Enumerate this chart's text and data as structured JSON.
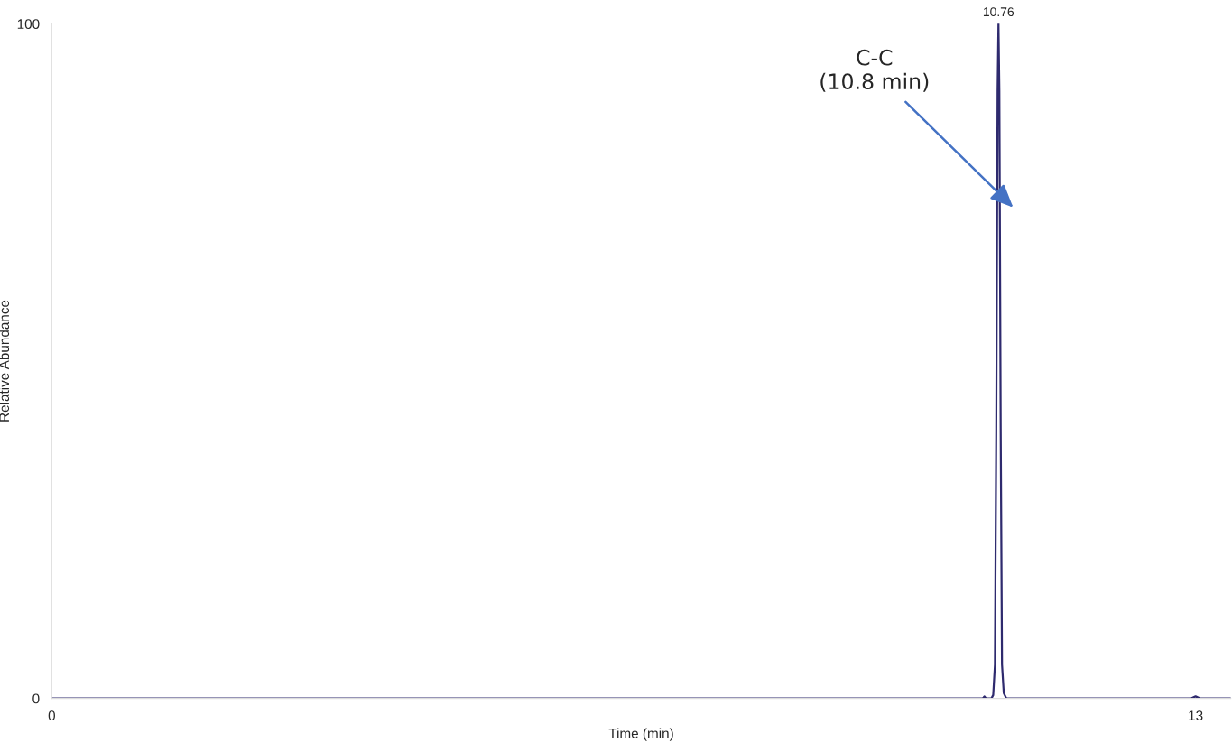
{
  "chart_data": {
    "type": "line",
    "xlabel": "Time (min)",
    "ylabel": "Relative Abundance",
    "x": [
      0,
      2,
      4,
      6,
      8,
      10,
      10.5,
      10.58,
      10.6,
      10.62,
      10.68,
      10.7,
      10.72,
      10.735,
      10.75,
      10.76,
      10.77,
      10.785,
      10.8,
      10.82,
      10.85,
      11.5,
      12.95,
      13.0,
      13.05,
      13.4
    ],
    "series": [
      {
        "color": "#2e2a6e",
        "values": [
          0,
          0,
          0,
          0,
          0,
          0,
          0,
          0,
          0.3,
          0,
          0,
          0.5,
          5,
          40,
          90,
          100,
          90,
          40,
          5,
          0.8,
          0,
          0,
          0,
          0.3,
          0,
          0
        ]
      }
    ],
    "xlim": [
      0,
      13.4
    ],
    "ylim": [
      0,
      100
    ],
    "xticks": [
      0,
      13
    ],
    "yticks": [
      0,
      100
    ],
    "annotations": [
      {
        "text": "10.76",
        "x": 10.76,
        "y": 100
      },
      "C-C\n(10.8 min)"
    ],
    "grid": false,
    "legend": false,
    "marker": "none",
    "line_style": "solid"
  }
}
